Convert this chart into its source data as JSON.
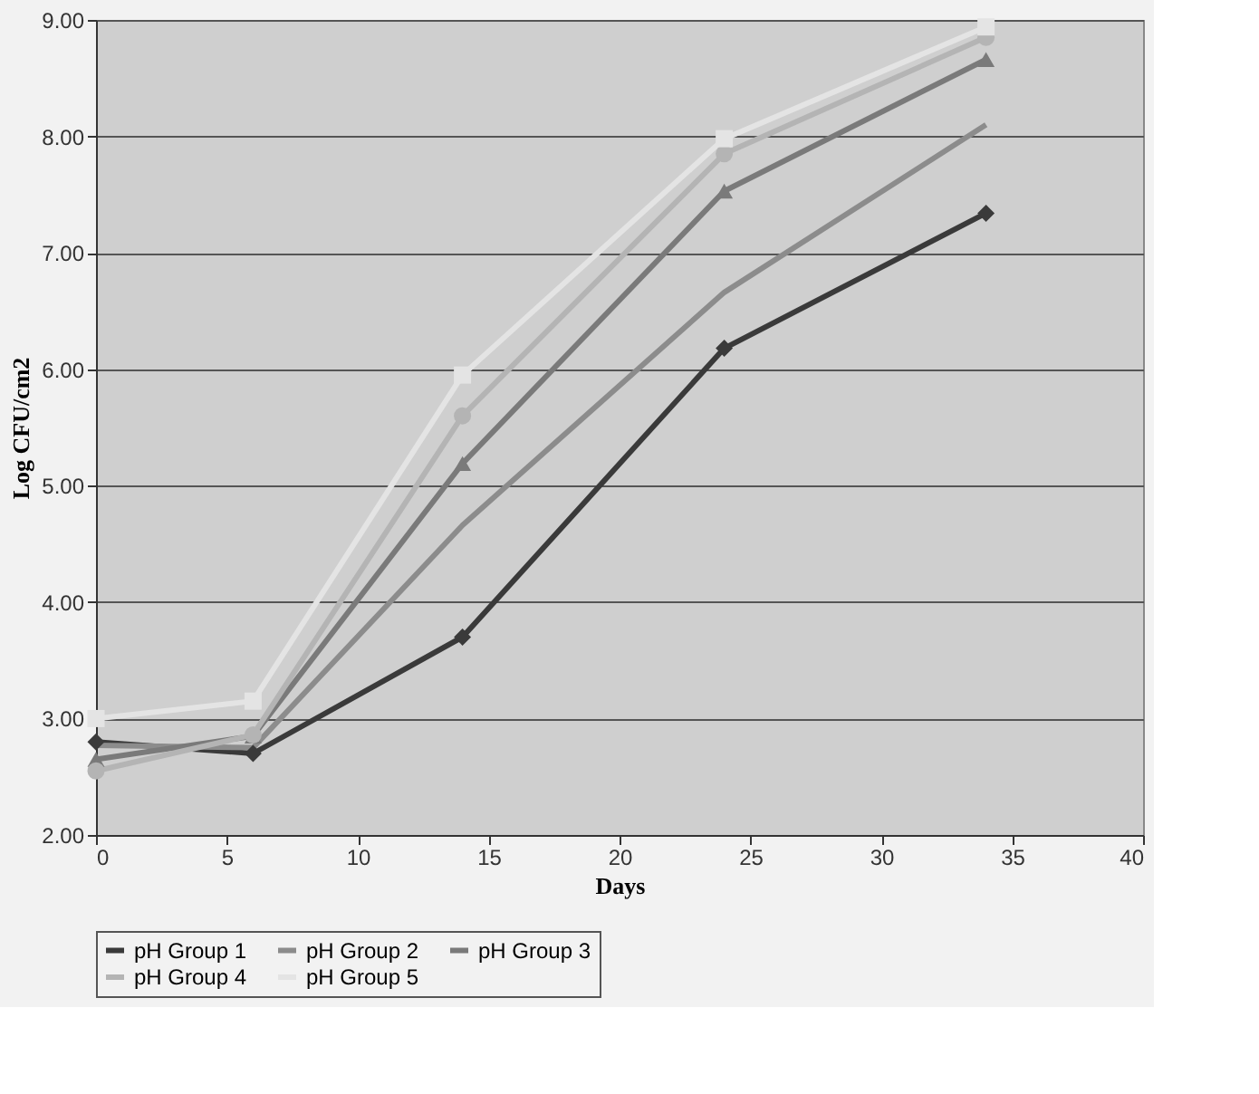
{
  "chart_data": {
    "type": "line",
    "xlabel": "Days",
    "ylabel": "Log CFU/cm2",
    "x": [
      0,
      6,
      14,
      24,
      34
    ],
    "series": [
      {
        "name": "pH Group 1",
        "color": "#3a3a3a",
        "marker": "diamond",
        "values": [
          2.8,
          2.7,
          3.7,
          6.18,
          7.34
        ]
      },
      {
        "name": "pH Group 2",
        "color": "#8c8c8c",
        "marker": "none",
        "values": [
          2.77,
          2.75,
          4.66,
          6.66,
          8.1
        ]
      },
      {
        "name": "pH Group 3",
        "color": "#7a7a7a",
        "marker": "triangle",
        "values": [
          2.65,
          2.85,
          5.19,
          7.53,
          8.66
        ]
      },
      {
        "name": "pH Group 4",
        "color": "#b4b4b4",
        "marker": "circle",
        "values": [
          2.55,
          2.86,
          5.6,
          7.85,
          8.85
        ]
      },
      {
        "name": "pH Group 5",
        "color": "#e4e4e4",
        "marker": "square",
        "values": [
          3.0,
          3.15,
          5.95,
          7.98,
          8.94
        ]
      }
    ],
    "xlim": [
      0,
      40
    ],
    "xticks": [
      0,
      5,
      10,
      15,
      20,
      25,
      30,
      35,
      40
    ],
    "ylim": [
      2,
      9
    ],
    "yticks": [
      {
        "value": 2,
        "label": "2.00"
      },
      {
        "value": 3,
        "label": "3.00"
      },
      {
        "value": 4,
        "label": "4.00"
      },
      {
        "value": 5,
        "label": "5.00"
      },
      {
        "value": 6,
        "label": "6.00"
      },
      {
        "value": 7,
        "label": "7.00"
      },
      {
        "value": 8,
        "label": "8.00"
      },
      {
        "value": 9,
        "label": "9.00"
      }
    ],
    "grid": "y",
    "legend": "bottom",
    "line_style": "solid"
  }
}
